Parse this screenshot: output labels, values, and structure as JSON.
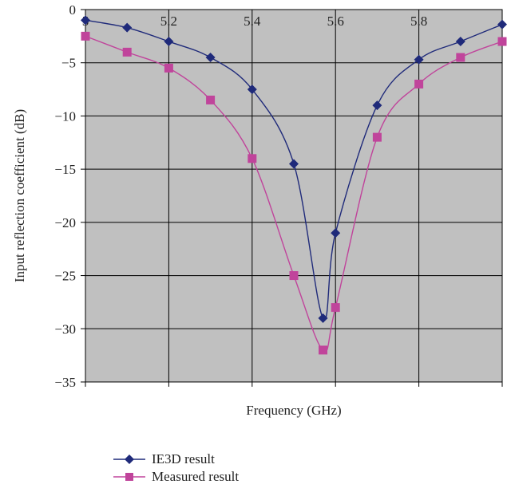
{
  "chart_data": {
    "type": "line",
    "xlabel": "Frequency (GHz)",
    "ylabel": "Input reflection coefficient (dB)",
    "xlim": [
      5.0,
      6.0
    ],
    "ylim": [
      -35,
      0
    ],
    "x_ticks": [
      {
        "value": 5.0,
        "label": "5"
      },
      {
        "value": 5.2,
        "label": "5.2"
      },
      {
        "value": 5.4,
        "label": "5.4"
      },
      {
        "value": 5.6,
        "label": "5.6"
      },
      {
        "value": 5.8,
        "label": "5.8"
      }
    ],
    "y_ticks": [
      {
        "value": 0,
        "label": "0"
      },
      {
        "value": -5,
        "label": "−5"
      },
      {
        "value": -10,
        "label": "−10"
      },
      {
        "value": -15,
        "label": "−15"
      },
      {
        "value": -20,
        "label": "−20"
      },
      {
        "value": -25,
        "label": "−25"
      },
      {
        "value": -30,
        "label": "−30"
      },
      {
        "value": -35,
        "label": "−35"
      }
    ],
    "grid": true,
    "legend_position": "bottom-left",
    "plot_background": "#c0c0c0",
    "series": [
      {
        "name": "IE3D result",
        "color": "#1f2a7a",
        "marker": "diamond",
        "points": [
          [
            5.0,
            -1.0
          ],
          [
            5.1,
            -1.7
          ],
          [
            5.2,
            -3.0
          ],
          [
            5.3,
            -4.5
          ],
          [
            5.4,
            -7.5
          ],
          [
            5.5,
            -14.5
          ],
          [
            5.57,
            -29.0
          ],
          [
            5.6,
            -21.0
          ],
          [
            5.7,
            -9.0
          ],
          [
            5.8,
            -4.7
          ],
          [
            5.9,
            -3.0
          ],
          [
            6.0,
            -1.4
          ]
        ]
      },
      {
        "name": "Measured result",
        "color": "#c0449b",
        "marker": "square",
        "points": [
          [
            5.0,
            -2.5
          ],
          [
            5.1,
            -4.0
          ],
          [
            5.2,
            -5.5
          ],
          [
            5.3,
            -8.5
          ],
          [
            5.4,
            -14.0
          ],
          [
            5.5,
            -25.0
          ],
          [
            5.57,
            -32.0
          ],
          [
            5.6,
            -28.0
          ],
          [
            5.7,
            -12.0
          ],
          [
            5.8,
            -7.0
          ],
          [
            5.9,
            -4.5
          ],
          [
            6.0,
            -3.0
          ]
        ]
      }
    ]
  }
}
